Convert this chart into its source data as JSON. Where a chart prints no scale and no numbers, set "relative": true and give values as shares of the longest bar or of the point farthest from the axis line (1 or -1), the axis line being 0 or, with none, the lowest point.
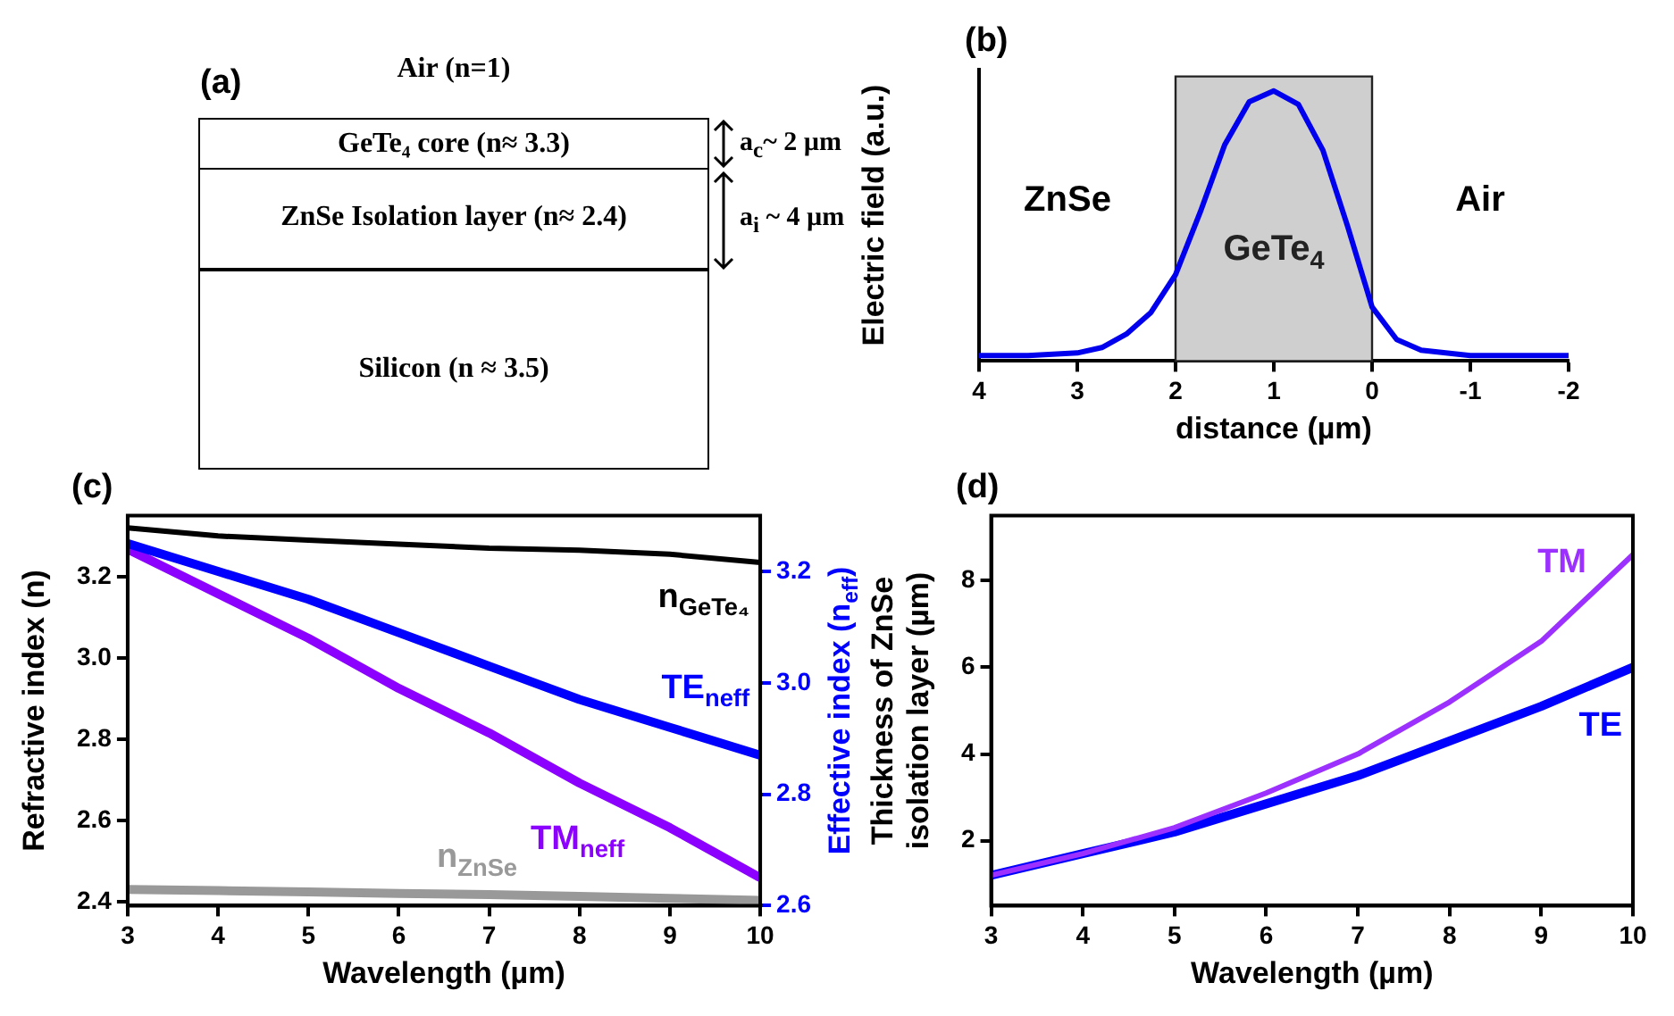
{
  "chart_data": [
    {
      "type": "other",
      "title": "(a)",
      "annotations": [
        "Air (n=1)",
        "GeTe₄ core (n≈ 3.3)",
        "ZnSe Isolation layer (n≈ 2.4)",
        "Silicon (n ≈ 3.5)",
        "a$_{c}$~ 2 µm",
        "a$_{i}$ ~ 4 µm"
      ]
    },
    {
      "type": "line",
      "title": "(b)",
      "xlabel": "distance (µm)",
      "ylabel": "Electric field (a.u.)",
      "relative": true,
      "xlim": [
        4,
        -2
      ],
      "xticks": [
        4,
        3,
        2,
        1,
        0,
        -1,
        -2
      ],
      "x": [
        4,
        3.5,
        3,
        2.75,
        2.5,
        2.25,
        2,
        1.75,
        1.5,
        1.25,
        1,
        0.75,
        0.5,
        0.25,
        0,
        -0.25,
        -0.5,
        -1,
        -2
      ],
      "series": [
        {
          "color": "#0000ee",
          "values": [
            0.02,
            0.02,
            0.03,
            0.05,
            0.1,
            0.18,
            0.32,
            0.55,
            0.8,
            0.96,
            1,
            0.95,
            0.78,
            0.5,
            0.2,
            0.08,
            0.04,
            0.02,
            0.02
          ]
        }
      ],
      "bands": [
        {
          "axis": "x",
          "from": 2,
          "to": 0,
          "label": "GeTe$_{4}$",
          "color": "#cfcfcf"
        }
      ],
      "annotations": [
        "ZnSe",
        "Air"
      ]
    },
    {
      "type": "line",
      "title": "(c)",
      "xlabel": "Wavelength (µm)",
      "ylabel": "Refractive index (n)",
      "y2label": "Effective index (n$_{eff}$)",
      "xlim": [
        3,
        10
      ],
      "xticks": [
        3,
        4,
        5,
        6,
        7,
        8,
        9,
        10
      ],
      "ylim": [
        2.39,
        3.35
      ],
      "yticks": [
        2.4,
        2.6,
        2.8,
        {
          "value": 3,
          "label": "3.0"
        },
        3.2
      ],
      "y2lim": [
        2.6,
        3.3
      ],
      "y2ticks": [
        2.6,
        2.8,
        {
          "value": 3,
          "label": "3.0"
        },
        3.2
      ],
      "x": [
        3,
        4,
        5,
        6,
        7,
        8,
        9,
        10
      ],
      "series": [
        {
          "name": "n$_{GeTe₄}$",
          "color": "#000000",
          "values": [
            3.32,
            3.3,
            3.29,
            3.28,
            3.27,
            3.265,
            3.255,
            3.235
          ]
        },
        {
          "name": "TE$_{neff}$",
          "color": "#0000ff",
          "axis": "y2",
          "values": [
            3.25,
            3.2,
            3.15,
            3.09,
            3.03,
            2.97,
            2.92,
            2.87
          ]
        },
        {
          "name": "TM$_{neff}$",
          "color": "#8b00ff",
          "axis": "y2",
          "values": [
            3.24,
            3.16,
            3.08,
            2.99,
            2.91,
            2.82,
            2.74,
            2.65
          ]
        },
        {
          "name": "n$_{ZnSe}$",
          "color": "#999999",
          "values": [
            2.43,
            2.427,
            2.424,
            2.42,
            2.417,
            2.413,
            2.408,
            2.403
          ]
        }
      ]
    },
    {
      "type": "line",
      "title": "(d)",
      "xlabel": "Wavelength (µm)",
      "ylabel": "Thickness of ZnSe\nisolation layer (µm)",
      "xlim": [
        3,
        10
      ],
      "xticks": [
        3,
        4,
        5,
        6,
        7,
        8,
        9,
        10
      ],
      "ylim": [
        0.5,
        9.5
      ],
      "yticks": [
        2,
        4,
        6,
        8
      ],
      "x": [
        3,
        4,
        5,
        6,
        7,
        8,
        9,
        10
      ],
      "series": [
        {
          "name": "TM",
          "color": "#9b30ff",
          "values": [
            1.2,
            1.7,
            2.3,
            3.1,
            4.0,
            5.2,
            6.6,
            8.6
          ]
        },
        {
          "name": "TE",
          "color": "#0000ff",
          "values": [
            1.2,
            1.7,
            2.2,
            2.85,
            3.5,
            4.3,
            5.1,
            6.0
          ]
        }
      ]
    }
  ]
}
